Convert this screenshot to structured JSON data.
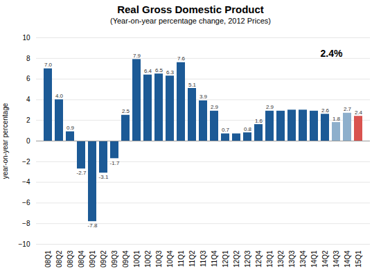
{
  "chart_data": {
    "type": "bar",
    "title": "Real Gross Domestic Product",
    "subtitle": "(Year-on-year percentage change, 2012 Prices)",
    "ylabel": "year-on-year percentage",
    "annotation": "2.4%",
    "categories": [
      "08Q1",
      "08Q2",
      "08Q3",
      "08Q4",
      "09Q1",
      "09Q2",
      "09Q3",
      "09Q4",
      "10Q1",
      "10Q2",
      "10Q3",
      "10Q4",
      "11Q1",
      "11Q2",
      "11Q3",
      "11Q4",
      "12Q1",
      "12Q2",
      "12Q3",
      "12Q4",
      "13Q1",
      "13Q2",
      "13Q3",
      "13Q4",
      "14Q1",
      "14Q2",
      "14Q3",
      "14Q4",
      "15Q1"
    ],
    "values": [
      7.0,
      4.0,
      0.9,
      -2.7,
      -7.8,
      -3.1,
      -1.7,
      2.5,
      7.9,
      6.4,
      6.5,
      6.3,
      7.6,
      5.1,
      3.9,
      2.9,
      0.7,
      0.7,
      0.8,
      1.6,
      2.9,
      2.9,
      3.0,
      3.0,
      2.9,
      2.6,
      1.8,
      2.7,
      2.4
    ],
    "value_labels": [
      "7.0",
      "4.0",
      "0.9",
      "-2.7",
      "-7.8",
      "-3.1",
      "-1.7",
      "2.5",
      "7.9",
      "6.4",
      "6.5",
      "6.3",
      "7.6",
      "5.1",
      "3.9",
      "2.9",
      "0.7",
      null,
      "0.8",
      "1.6",
      "2.9",
      null,
      null,
      null,
      null,
      "2.6",
      "1.8",
      "2.7",
      "2.4"
    ],
    "colors": [
      "#1C5A96",
      "#1C5A96",
      "#1C5A96",
      "#1C5A96",
      "#1C5A96",
      "#1C5A96",
      "#1C5A96",
      "#1C5A96",
      "#1C5A96",
      "#1C5A96",
      "#1C5A96",
      "#1C5A96",
      "#1C5A96",
      "#1C5A96",
      "#1C5A96",
      "#1C5A96",
      "#1C5A96",
      "#1C5A96",
      "#1C5A96",
      "#1C5A96",
      "#1C5A96",
      "#1C5A96",
      "#1C5A96",
      "#1C5A96",
      "#1C5A96",
      "#1C5A96",
      "#8DAFCC",
      "#8DAFCC",
      "#D9534F"
    ],
    "ylim": [
      -10,
      10
    ],
    "yticks": [
      -10,
      -8,
      -6,
      -4,
      -2,
      0,
      2,
      4,
      6,
      8,
      10
    ],
    "grid": true,
    "data_labels": true
  }
}
